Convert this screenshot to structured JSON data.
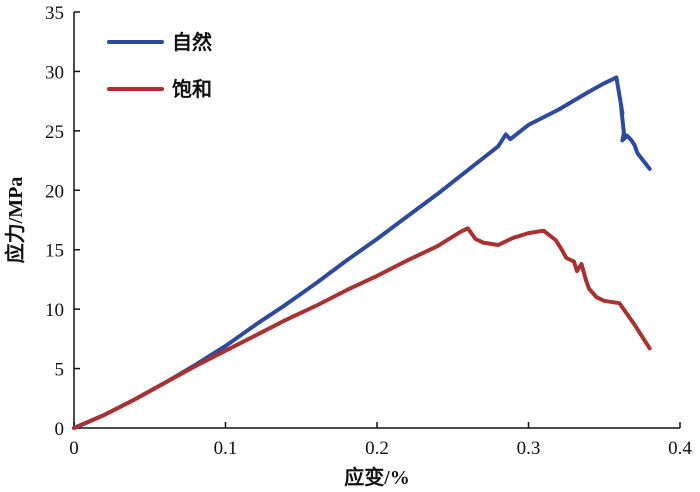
{
  "chart_data": {
    "type": "line",
    "xlabel": "应变/%",
    "ylabel": "应力/MPa",
    "xlim": [
      0,
      0.4
    ],
    "ylim": [
      0,
      35
    ],
    "xticks": [
      "0",
      "0.1",
      "0.2",
      "0.3",
      "0.4"
    ],
    "yticks": [
      "0",
      "5",
      "10",
      "15",
      "20",
      "25",
      "30",
      "35"
    ],
    "grid": false,
    "legend_position": "top-left",
    "series": [
      {
        "name": "自然",
        "color": "#2e4a9e",
        "x": [
          0,
          0.02,
          0.04,
          0.06,
          0.08,
          0.1,
          0.12,
          0.14,
          0.16,
          0.18,
          0.2,
          0.22,
          0.24,
          0.26,
          0.28,
          0.285,
          0.288,
          0.3,
          0.32,
          0.34,
          0.35,
          0.358,
          0.36,
          0.362,
          0.361,
          0.363,
          0.362,
          0.365,
          0.368,
          0.37,
          0.372,
          0.38
        ],
        "y": [
          0,
          1.1,
          2.4,
          3.8,
          5.3,
          6.9,
          8.7,
          10.4,
          12.2,
          14.1,
          15.9,
          17.8,
          19.7,
          21.7,
          23.7,
          24.7,
          24.3,
          25.5,
          26.8,
          28.3,
          29.0,
          29.5,
          28.0,
          26.5,
          27.2,
          24.8,
          24.2,
          24.6,
          24.2,
          23.8,
          23.1,
          21.8
        ]
      },
      {
        "name": "饱和",
        "color": "#a83232",
        "x": [
          0,
          0.02,
          0.04,
          0.06,
          0.08,
          0.1,
          0.12,
          0.14,
          0.16,
          0.18,
          0.2,
          0.22,
          0.24,
          0.255,
          0.26,
          0.265,
          0.27,
          0.28,
          0.29,
          0.3,
          0.31,
          0.318,
          0.322,
          0.325,
          0.33,
          0.332,
          0.335,
          0.338,
          0.34,
          0.345,
          0.35,
          0.36,
          0.37,
          0.38
        ],
        "y": [
          0,
          1.1,
          2.4,
          3.8,
          5.2,
          6.5,
          7.8,
          9.1,
          10.3,
          11.6,
          12.8,
          14.1,
          15.3,
          16.5,
          16.8,
          15.9,
          15.6,
          15.4,
          16.0,
          16.4,
          16.6,
          15.8,
          15.0,
          14.3,
          14.0,
          13.2,
          13.8,
          12.4,
          11.7,
          11.0,
          10.7,
          10.5,
          8.7,
          6.7
        ]
      }
    ]
  }
}
